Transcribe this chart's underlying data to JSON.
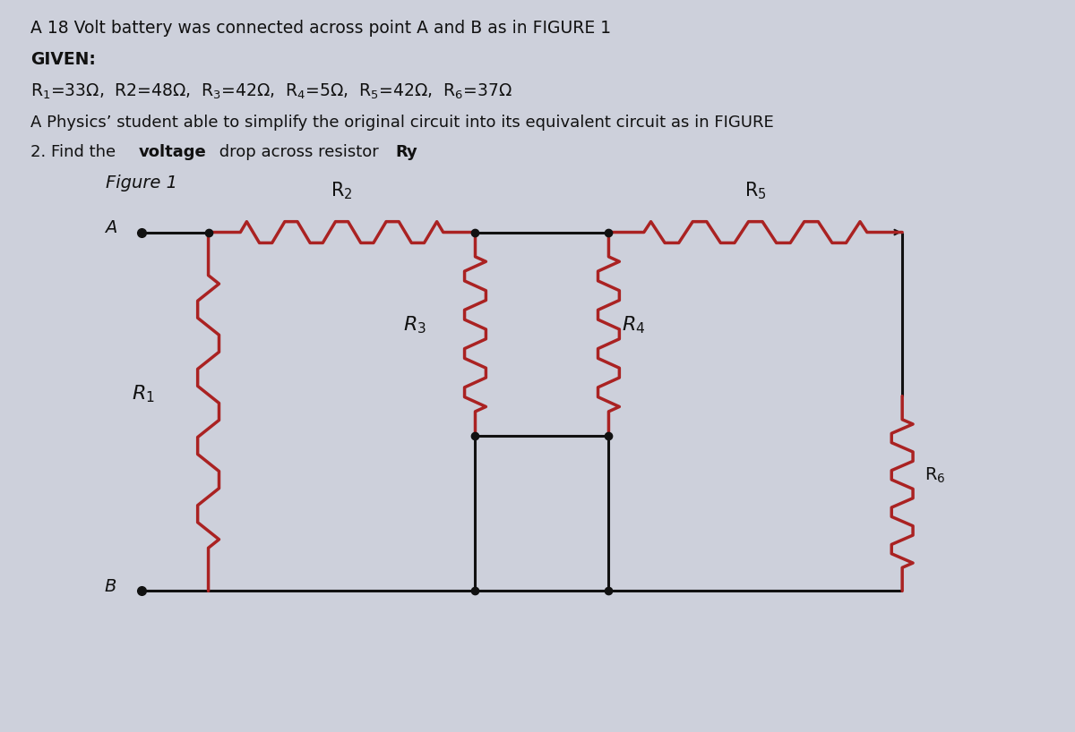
{
  "bg_color": "#cdd0db",
  "line_color": "#111111",
  "resistor_color": "#aa2222",
  "text_color": "#111111",
  "title_line1": "A 18 Volt battery was connected across point A and B as in FIGURE 1.",
  "given_label": "GIVEN:",
  "figure_label": "Figure 1"
}
